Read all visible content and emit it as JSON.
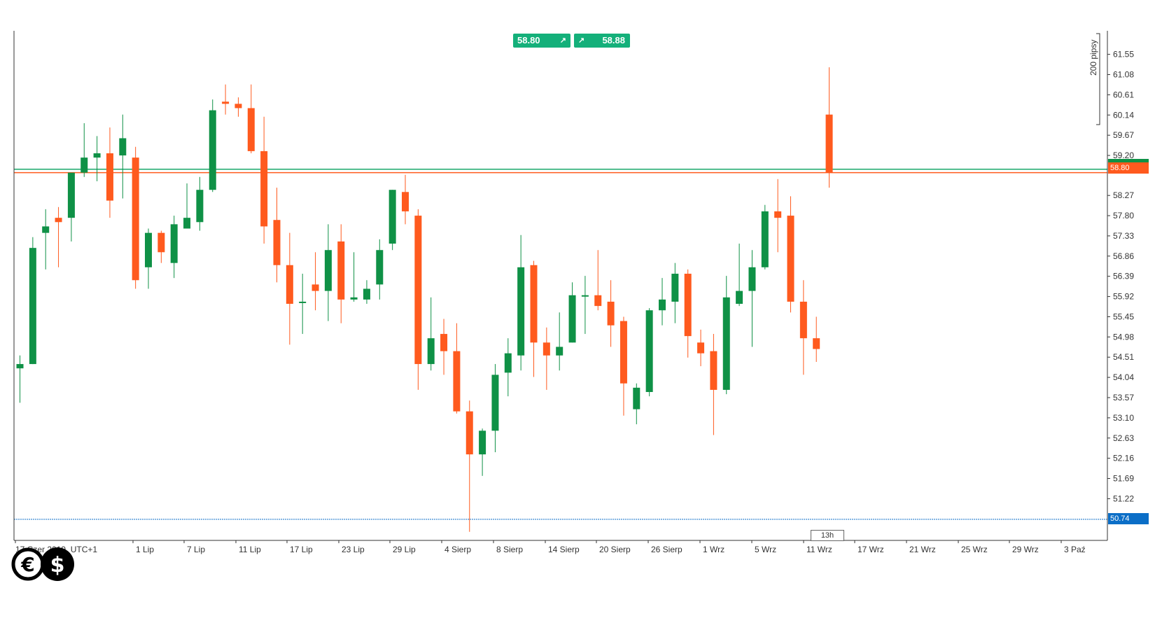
{
  "colors": {
    "up": "#0f9146",
    "down": "#ff5a1e",
    "support": "#0b6ec7",
    "ask_line": "#1aa86b",
    "quote": "#14b07a"
  },
  "quotes": {
    "bid": "58.80",
    "ask": "58.88",
    "bid_arrow": "↗",
    "ask_arrow": "↗"
  },
  "axis_tags": {
    "last_price": "58.80",
    "support_level": "50.74"
  },
  "ruler": {
    "label": "200 pipsy"
  },
  "timer": {
    "label": "13h"
  },
  "logo": {
    "text": "€$"
  },
  "chart_data": {
    "type": "candlestick",
    "y_ticks": [
      "61.55",
      "61.08",
      "60.61",
      "60.14",
      "59.67",
      "59.20",
      "58.27",
      "57.80",
      "57.33",
      "56.86",
      "56.39",
      "55.92",
      "55.45",
      "54.98",
      "54.51",
      "54.04",
      "53.57",
      "53.10",
      "52.63",
      "52.16",
      "51.69",
      "51.22"
    ],
    "ylim": [
      50.25,
      62.0
    ],
    "x_labels": [
      "17 Czer 2019, UTC+1",
      "1 Lip",
      "7 Lip",
      "11 Lip",
      "17 Lip",
      "23 Lip",
      "29 Lip",
      "4 Sierp",
      "8 Sierp",
      "14 Sierp",
      "20 Sierp",
      "26 Sierp",
      "1 Wrz",
      "5 Wrz",
      "11 Wrz",
      "17 Wrz",
      "21 Wrz",
      "25 Wrz",
      "29 Wrz",
      "3 Paź"
    ],
    "horizontal_lines": [
      {
        "value": 58.88,
        "color": "#1aa86b"
      },
      {
        "value": 58.8,
        "color": "#ff5a1e"
      },
      {
        "value": 50.74,
        "color": "#0b6ec7"
      }
    ],
    "candles": [
      {
        "o": 54.25,
        "h": 54.55,
        "l": 53.45,
        "c": 54.35
      },
      {
        "o": 54.35,
        "h": 57.3,
        "l": 54.35,
        "c": 57.05
      },
      {
        "o": 57.4,
        "h": 57.95,
        "l": 56.55,
        "c": 57.55
      },
      {
        "o": 57.75,
        "h": 58.0,
        "l": 56.6,
        "c": 57.65
      },
      {
        "o": 57.75,
        "h": 58.7,
        "l": 57.2,
        "c": 58.8
      },
      {
        "o": 58.8,
        "h": 59.95,
        "l": 58.7,
        "c": 59.15
      },
      {
        "o": 59.15,
        "h": 59.65,
        "l": 58.6,
        "c": 59.25
      },
      {
        "o": 59.25,
        "h": 59.85,
        "l": 57.75,
        "c": 58.15
      },
      {
        "o": 59.2,
        "h": 60.15,
        "l": 58.2,
        "c": 59.6
      },
      {
        "o": 59.15,
        "h": 59.4,
        "l": 56.1,
        "c": 56.3
      },
      {
        "o": 56.6,
        "h": 57.5,
        "l": 56.1,
        "c": 57.4
      },
      {
        "o": 57.4,
        "h": 57.45,
        "l": 56.7,
        "c": 56.95
      },
      {
        "o": 56.7,
        "h": 57.8,
        "l": 56.35,
        "c": 57.6
      },
      {
        "o": 57.5,
        "h": 58.55,
        "l": 57.5,
        "c": 57.75
      },
      {
        "o": 57.65,
        "h": 58.7,
        "l": 57.45,
        "c": 58.4
      },
      {
        "o": 58.4,
        "h": 60.5,
        "l": 58.35,
        "c": 60.25
      },
      {
        "o": 60.45,
        "h": 60.85,
        "l": 60.15,
        "c": 60.4
      },
      {
        "o": 60.4,
        "h": 60.55,
        "l": 60.1,
        "c": 60.3
      },
      {
        "o": 60.3,
        "h": 60.85,
        "l": 59.25,
        "c": 59.3
      },
      {
        "o": 59.3,
        "h": 60.1,
        "l": 57.15,
        "c": 57.55
      },
      {
        "o": 57.7,
        "h": 58.45,
        "l": 56.25,
        "c": 56.65
      },
      {
        "o": 56.65,
        "h": 57.4,
        "l": 54.8,
        "c": 55.75
      },
      {
        "o": 55.8,
        "h": 56.45,
        "l": 55.05,
        "c": 55.8
      },
      {
        "o": 56.2,
        "h": 56.95,
        "l": 55.6,
        "c": 56.05
      },
      {
        "o": 56.05,
        "h": 57.6,
        "l": 55.35,
        "c": 57.0
      },
      {
        "o": 57.2,
        "h": 57.6,
        "l": 55.3,
        "c": 55.85
      },
      {
        "o": 55.85,
        "h": 56.95,
        "l": 55.8,
        "c": 55.9
      },
      {
        "o": 55.85,
        "h": 56.3,
        "l": 55.75,
        "c": 56.1
      },
      {
        "o": 56.2,
        "h": 57.25,
        "l": 55.85,
        "c": 57.0
      },
      {
        "o": 57.15,
        "h": 58.4,
        "l": 57.0,
        "c": 58.4
      },
      {
        "o": 58.35,
        "h": 58.75,
        "l": 57.6,
        "c": 57.9
      },
      {
        "o": 57.8,
        "h": 57.95,
        "l": 53.75,
        "c": 54.35
      },
      {
        "o": 54.35,
        "h": 55.9,
        "l": 54.2,
        "c": 54.95
      },
      {
        "o": 55.05,
        "h": 55.4,
        "l": 54.1,
        "c": 54.65
      },
      {
        "o": 54.65,
        "h": 55.3,
        "l": 53.2,
        "c": 53.25
      },
      {
        "o": 53.25,
        "h": 53.5,
        "l": 50.45,
        "c": 52.25
      },
      {
        "o": 52.25,
        "h": 52.85,
        "l": 51.75,
        "c": 52.8
      },
      {
        "o": 52.8,
        "h": 54.35,
        "l": 52.3,
        "c": 54.1
      },
      {
        "o": 54.15,
        "h": 54.95,
        "l": 53.6,
        "c": 54.6
      },
      {
        "o": 54.55,
        "h": 57.35,
        "l": 54.2,
        "c": 56.6
      },
      {
        "o": 56.65,
        "h": 56.75,
        "l": 54.05,
        "c": 54.85
      },
      {
        "o": 54.85,
        "h": 55.2,
        "l": 53.75,
        "c": 54.55
      },
      {
        "o": 54.55,
        "h": 55.55,
        "l": 54.2,
        "c": 54.75
      },
      {
        "o": 54.85,
        "h": 56.25,
        "l": 54.85,
        "c": 55.95
      },
      {
        "o": 55.95,
        "h": 56.4,
        "l": 55.05,
        "c": 55.95
      },
      {
        "o": 55.95,
        "h": 57.0,
        "l": 55.6,
        "c": 55.7
      },
      {
        "o": 55.8,
        "h": 56.3,
        "l": 54.75,
        "c": 55.25
      },
      {
        "o": 55.35,
        "h": 55.45,
        "l": 53.15,
        "c": 53.9
      },
      {
        "o": 53.3,
        "h": 53.9,
        "l": 52.95,
        "c": 53.8
      },
      {
        "o": 53.7,
        "h": 55.65,
        "l": 53.6,
        "c": 55.6
      },
      {
        "o": 55.6,
        "h": 56.35,
        "l": 55.25,
        "c": 55.85
      },
      {
        "o": 55.8,
        "h": 56.7,
        "l": 55.3,
        "c": 56.45
      },
      {
        "o": 56.45,
        "h": 56.55,
        "l": 54.5,
        "c": 55.0
      },
      {
        "o": 54.85,
        "h": 55.15,
        "l": 54.3,
        "c": 54.6
      },
      {
        "o": 54.65,
        "h": 55.05,
        "l": 52.7,
        "c": 53.75
      },
      {
        "o": 53.75,
        "h": 56.4,
        "l": 53.65,
        "c": 55.9
      },
      {
        "o": 55.75,
        "h": 57.15,
        "l": 55.7,
        "c": 56.05
      },
      {
        "o": 56.05,
        "h": 57.0,
        "l": 54.75,
        "c": 56.6
      },
      {
        "o": 56.6,
        "h": 58.05,
        "l": 56.55,
        "c": 57.9
      },
      {
        "o": 57.9,
        "h": 58.65,
        "l": 56.95,
        "c": 57.75
      },
      {
        "o": 57.8,
        "h": 58.25,
        "l": 55.55,
        "c": 55.8
      },
      {
        "o": 55.8,
        "h": 56.3,
        "l": 54.1,
        "c": 54.95
      },
      {
        "o": 54.95,
        "h": 55.45,
        "l": 54.4,
        "c": 54.7
      },
      {
        "o": 60.15,
        "h": 61.25,
        "l": 58.45,
        "c": 58.8
      }
    ]
  }
}
